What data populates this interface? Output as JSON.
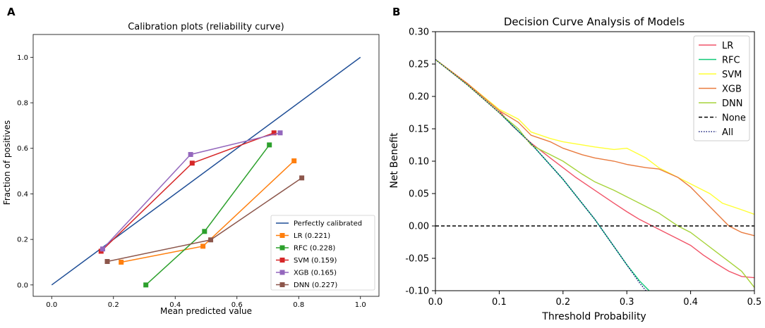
{
  "chart_data": [
    {
      "panel_label": "A",
      "type": "line",
      "title": "Calibration plots (reliability curve)",
      "xlabel": "Mean predicted value",
      "ylabel": "Fraction of positives",
      "xlim": [
        -0.06,
        1.06
      ],
      "ylim": [
        -0.05,
        1.1
      ],
      "xticks": [
        "0.0",
        "0.2",
        "0.4",
        "0.6",
        "0.8",
        "1.0"
      ],
      "yticks": [
        "0.0",
        "0.2",
        "0.4",
        "0.6",
        "0.8",
        "1.0"
      ],
      "legend_position": "lower-right",
      "series": [
        {
          "name": "Perfectly calibrated",
          "color": "#1f4e96",
          "marker": "none",
          "x": [
            0.0,
            1.0
          ],
          "y": [
            0.0,
            1.0
          ]
        },
        {
          "name": "LR (0.221)",
          "color": "#ff7f0e",
          "marker": "square",
          "x": [
            0.225,
            0.49,
            0.785
          ],
          "y": [
            0.1,
            0.17,
            0.545
          ]
        },
        {
          "name": "RFC (0.228)",
          "color": "#2ca02c",
          "marker": "square",
          "x": [
            0.305,
            0.495,
            0.705
          ],
          "y": [
            0.0,
            0.235,
            0.615
          ]
        },
        {
          "name": "SVM (0.159)",
          "color": "#d62728",
          "marker": "square",
          "x": [
            0.16,
            0.455,
            0.72
          ],
          "y": [
            0.148,
            0.535,
            0.668
          ]
        },
        {
          "name": "XGB (0.165)",
          "color": "#9467bd",
          "marker": "square",
          "x": [
            0.165,
            0.45,
            0.74
          ],
          "y": [
            0.158,
            0.573,
            0.668
          ]
        },
        {
          "name": "DNN (0.227)",
          "color": "#8c564b",
          "marker": "square",
          "x": [
            0.18,
            0.515,
            0.81
          ],
          "y": [
            0.103,
            0.198,
            0.47
          ]
        }
      ]
    },
    {
      "panel_label": "B",
      "type": "line",
      "title": "Decision Curve Analysis of Models",
      "xlabel": "Threshold Probability",
      "ylabel": "Net Benefit",
      "xlim": [
        0,
        0.5
      ],
      "ylim": [
        -0.1,
        0.3
      ],
      "xticks": [
        "0.0",
        "0.1",
        "0.2",
        "0.3",
        "0.4",
        "0.5"
      ],
      "yticks": [
        "-0.10",
        "-0.05",
        "0.00",
        "0.05",
        "0.10",
        "0.15",
        "0.20",
        "0.25",
        "0.30"
      ],
      "legend_position": "top-right",
      "series": [
        {
          "name": "LR",
          "color": "#f15468",
          "style": "solid",
          "x": [
            0.0,
            0.05,
            0.1,
            0.12,
            0.15,
            0.18,
            0.2,
            0.22,
            0.25,
            0.28,
            0.3,
            0.32,
            0.34,
            0.36,
            0.38,
            0.4,
            0.42,
            0.44,
            0.46,
            0.48,
            0.5
          ],
          "y": [
            0.257,
            0.22,
            0.178,
            0.155,
            0.128,
            0.105,
            0.09,
            0.075,
            0.055,
            0.035,
            0.022,
            0.01,
            0.0,
            -0.01,
            -0.02,
            -0.03,
            -0.045,
            -0.058,
            -0.07,
            -0.078,
            -0.08
          ]
        },
        {
          "name": "RFC",
          "color": "#10c978",
          "style": "solid",
          "x": [
            0.0,
            0.05,
            0.1,
            0.15,
            0.2,
            0.25,
            0.3,
            0.32,
            0.335
          ],
          "y": [
            0.257,
            0.218,
            0.175,
            0.127,
            0.072,
            0.01,
            -0.06,
            -0.085,
            -0.1
          ]
        },
        {
          "name": "SVM",
          "color": "#ffff33",
          "style": "solid",
          "x": [
            0.0,
            0.05,
            0.1,
            0.13,
            0.15,
            0.18,
            0.2,
            0.25,
            0.28,
            0.3,
            0.33,
            0.35,
            0.38,
            0.4,
            0.43,
            0.45,
            0.48,
            0.5
          ],
          "y": [
            0.257,
            0.22,
            0.18,
            0.165,
            0.145,
            0.135,
            0.13,
            0.122,
            0.118,
            0.12,
            0.105,
            0.09,
            0.075,
            0.065,
            0.05,
            0.035,
            0.025,
            0.018
          ]
        },
        {
          "name": "XGB",
          "color": "#e97b3f",
          "style": "solid",
          "x": [
            0.0,
            0.05,
            0.1,
            0.13,
            0.15,
            0.18,
            0.2,
            0.23,
            0.25,
            0.28,
            0.3,
            0.33,
            0.35,
            0.38,
            0.4,
            0.42,
            0.44,
            0.46,
            0.48,
            0.5
          ],
          "y": [
            0.257,
            0.22,
            0.178,
            0.16,
            0.14,
            0.13,
            0.12,
            0.11,
            0.105,
            0.1,
            0.095,
            0.09,
            0.088,
            0.075,
            0.06,
            0.04,
            0.02,
            0.0,
            -0.01,
            -0.015
          ]
        },
        {
          "name": "DNN",
          "color": "#a6d33a",
          "style": "solid",
          "x": [
            0.0,
            0.05,
            0.1,
            0.13,
            0.15,
            0.18,
            0.2,
            0.23,
            0.25,
            0.28,
            0.3,
            0.33,
            0.35,
            0.38,
            0.4,
            0.42,
            0.44,
            0.46,
            0.48,
            0.5
          ],
          "y": [
            0.257,
            0.218,
            0.175,
            0.15,
            0.125,
            0.11,
            0.1,
            0.08,
            0.068,
            0.055,
            0.045,
            0.03,
            0.02,
            0.0,
            -0.01,
            -0.025,
            -0.04,
            -0.055,
            -0.07,
            -0.095
          ]
        },
        {
          "name": "None",
          "color": "#000000",
          "style": "dashed",
          "x": [
            0.0,
            0.5
          ],
          "y": [
            0.0,
            0.0
          ]
        },
        {
          "name": "All",
          "color": "#1a237e",
          "style": "dotted",
          "x": [
            0.0,
            0.05,
            0.1,
            0.15,
            0.2,
            0.25,
            0.3,
            0.32,
            0.33
          ],
          "y": [
            0.257,
            0.218,
            0.175,
            0.127,
            0.072,
            0.01,
            -0.06,
            -0.088,
            -0.1
          ]
        }
      ]
    }
  ]
}
